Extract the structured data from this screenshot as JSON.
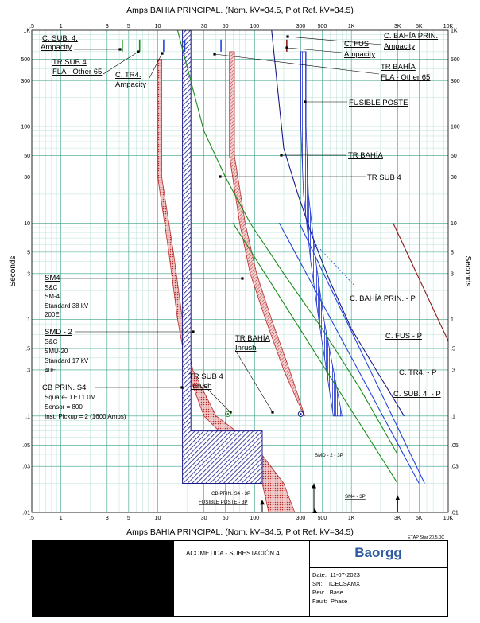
{
  "chart_data": {
    "type": "line",
    "title": "Amps   BAHÍA PRINCIPAL. (Nom. kV=34.5, Plot Ref. kV=34.5)",
    "xlabel": "Amps   BAHÍA PRINCIPAL. (Nom. kV=34.5, Plot Ref. kV=34.5)",
    "ylabel": "Seconds",
    "x_scale": "log",
    "y_scale": "log",
    "xlim": [
      0.5,
      10000
    ],
    "ylim": [
      0.01,
      1000
    ],
    "x_tick_labels": [
      {
        "v": 0.5,
        "t": ".5"
      },
      {
        "v": 1,
        "t": "1"
      },
      {
        "v": 3,
        "t": "3"
      },
      {
        "v": 5,
        "t": "5"
      },
      {
        "v": 10,
        "t": "10"
      },
      {
        "v": 30,
        "t": "30"
      },
      {
        "v": 50,
        "t": "50"
      },
      {
        "v": 100,
        "t": "100"
      },
      {
        "v": 300,
        "t": "300"
      },
      {
        "v": 500,
        "t": "500"
      },
      {
        "v": 1000,
        "t": "1K"
      },
      {
        "v": 3000,
        "t": "3K"
      },
      {
        "v": 5000,
        "t": "5K"
      },
      {
        "v": 10000,
        "t": "10K"
      }
    ],
    "y_tick_labels": [
      {
        "v": 1000,
        "t": "1K"
      },
      {
        "v": 500,
        "t": "500"
      },
      {
        "v": 300,
        "t": "300"
      },
      {
        "v": 100,
        "t": "100"
      },
      {
        "v": 50,
        "t": "50"
      },
      {
        "v": 30,
        "t": "30"
      },
      {
        "v": 10,
        "t": "10"
      },
      {
        "v": 5,
        "t": "5"
      },
      {
        "v": 3,
        "t": "3"
      },
      {
        "v": 1,
        "t": "1"
      },
      {
        "v": 0.5,
        "t": ".5"
      },
      {
        "v": 0.3,
        "t": ".3"
      },
      {
        "v": 0.1,
        "t": ".1"
      },
      {
        "v": 0.05,
        "t": ".05"
      },
      {
        "v": 0.03,
        "t": ".03"
      },
      {
        "v": 0.01,
        "t": ".01"
      }
    ],
    "grid": true,
    "series": [
      {
        "id": "tr-bahia",
        "name": "TR BAHÍA",
        "color": "#1a1a8c",
        "x": [
          150,
          200,
          280,
          400,
          600,
          1000,
          1800,
          3500
        ],
        "y": [
          1000,
          60,
          20,
          7,
          2.5,
          0.8,
          0.3,
          0.1
        ]
      },
      {
        "id": "tr-sub4",
        "name": "TR SUB 4",
        "color": "#1a8c1a",
        "x": [
          16,
          30,
          50,
          90,
          200,
          500,
          1200,
          3000
        ],
        "y": [
          1000,
          90,
          30,
          10,
          3,
          0.8,
          0.2,
          0.04
        ]
      },
      {
        "id": "c-sub4-p",
        "name": "C. SUB. 4. - P",
        "color": "#1a8c1a",
        "x": [
          60,
          3000
        ],
        "y": [
          10,
          0.02
        ]
      },
      {
        "id": "c-tr4-p",
        "name": "C. TR4. - P",
        "color": "#2244dd",
        "x": [
          180,
          5000
        ],
        "y": [
          10,
          0.02
        ]
      },
      {
        "id": "c-fus-p",
        "name": "C. FUS - P",
        "color": "#2244dd",
        "x": [
          290,
          5700
        ],
        "y": [
          10,
          0.02
        ]
      },
      {
        "id": "c-bahia-prin-p",
        "name": "C. BAHÍA PRIN. - P",
        "color": "#8c1a1a",
        "x": [
          2700,
          10000
        ],
        "y": [
          10,
          0.6
        ]
      }
    ],
    "bands": [
      {
        "id": "fusible-poste",
        "name": "FUSIBLE POSTE",
        "color": "#2233cc",
        "left": {
          "x": [
            300,
            300,
            320,
            380,
            460,
            650
          ],
          "y": [
            600,
            100,
            20,
            4,
            1,
            0.1
          ]
        },
        "right": {
          "x": [
            340,
            340,
            360,
            430,
            520,
            800
          ],
          "y": [
            600,
            100,
            20,
            4,
            1,
            0.1
          ]
        }
      },
      {
        "id": "sm4",
        "name": "SM4",
        "color": "#b83030",
        "left": {
          "x": [
            55,
            55,
            70,
            90,
            130,
            200,
            270
          ],
          "y": [
            600,
            50,
            10,
            3,
            1,
            0.3,
            0.15
          ]
        },
        "right": {
          "x": [
            62,
            62,
            80,
            105,
            150,
            230,
            330
          ],
          "y": [
            600,
            50,
            10,
            3,
            1,
            0.3,
            0.1
          ]
        }
      },
      {
        "id": "smd-2",
        "name": "SMD - 2",
        "color": "#b83030",
        "left": {
          "x": [
            10,
            10,
            13,
            16,
            20,
            30,
            60,
            120,
            140
          ],
          "y": [
            500,
            30,
            5,
            1,
            0.3,
            0.1,
            0.05,
            0.02,
            0.01
          ]
        },
        "right": {
          "x": [
            11,
            11,
            14.5,
            18,
            23,
            40,
            100,
            200,
            260
          ],
          "y": [
            500,
            30,
            5,
            1,
            0.3,
            0.1,
            0.05,
            0.02,
            0.01
          ]
        }
      }
    ],
    "cb_prin_s4": {
      "name": "CB PRIN. S4",
      "i_lo": 18,
      "i_hi": 22,
      "t_top": 1000,
      "t_knee": 0.07,
      "i_inst": 120,
      "t_bottom": 0.02
    },
    "arrows": [
      {
        "name": "SMD - 2 - 3P",
        "x": 410,
        "y_top": 0.02
      },
      {
        "name": "SM4 - 3P",
        "x": 3000,
        "y_top": 0.015
      },
      {
        "name": "CB PRIN. S4 - 3P",
        "x": 120,
        "y_top": 0.0135
      },
      {
        "name": "FUSIBLE POSTE - 3P",
        "x": 420,
        "y_top": 0.011
      }
    ],
    "inrush_points": [
      {
        "name": "TR SUB 4 Inrush",
        "x": 53,
        "y": 0.105,
        "color": "#1a8c1a"
      },
      {
        "name": "TR BAHÍA Inrush",
        "x": 300,
        "y": 0.105,
        "color": "#1a1a8c"
      }
    ],
    "ampacity_ticks": [
      {
        "x": 4.3,
        "y_top": 800,
        "y_bot": 600,
        "color": "#1a8c1a"
      },
      {
        "x": 6.5,
        "y_top": 800,
        "y_bot": 600,
        "color": "#1a8c1a"
      },
      {
        "x": 11.5,
        "y_top": 800,
        "y_bot": 600,
        "color": "#2244dd"
      },
      {
        "x": 19,
        "y_top": 800,
        "y_bot": 600,
        "color": "#2244dd"
      },
      {
        "x": 45,
        "y_top": 800,
        "y_bot": 600,
        "color": "#2244dd"
      },
      {
        "x": 215,
        "y_top": 800,
        "y_bot": 600,
        "color": "#8c1a1a"
      }
    ],
    "annotations": {
      "c_sub4": [
        "C. SUB. 4.",
        "Ampacity"
      ],
      "tr_sub4_fla": [
        "TR SUB 4",
        "FLA - Other 65"
      ],
      "c_tr4": [
        "C. TR4.",
        "Ampacity"
      ],
      "c_fus": [
        "C. FUS",
        "Ampacity"
      ],
      "c_bahia_prin": [
        "C. BAHÍA PRIN.",
        "Ampacity"
      ],
      "tr_bahia_fla": [
        "TR BAHÍA",
        "FLA - Other 65"
      ],
      "fusible_poste": "FUSIBLE POSTE",
      "tr_bahia": "TR BAHÍA",
      "tr_sub4": "TR SUB 4",
      "sm4": [
        "SM4",
        "S&C",
        "SM-4",
        "Standard  38 kV",
        "200E"
      ],
      "smd2": [
        "SMD - 2",
        "S&C",
        "SMU-20",
        "Standard  17 kV",
        "40E"
      ],
      "cb_prin": [
        "CB PRIN. S4",
        "Square-D  ET1.0M",
        "Sensor = 800",
        "Inst. Pickup = 2 (1600 Amps)"
      ],
      "tr_bahia_inrush": [
        "TR BAHÍA",
        "Inrush"
      ],
      "tr_sub4_inrush": [
        "TR SUB 4",
        "Inrush"
      ],
      "c_bahia_prin_p": "C. BAHÍA PRIN. - P",
      "c_fus_p": "C. FUS - P",
      "c_tr4_p": "C. TR4. - P",
      "c_sub4_p": "C. SUB. 4. - P"
    }
  },
  "footer": {
    "software": "ETAP Star 20.5.0C",
    "project": "ACOMETIDA - SUBESTACIÓN 4",
    "logo": "Baorgg",
    "date_label": "Date:",
    "date": "11-07-2023",
    "sn_label": "SN:",
    "sn": "ICECSAMX",
    "rev_label": "Rev:",
    "rev": "Base",
    "fault_label": "Fault:",
    "fault": "Phase"
  },
  "colors": {
    "grid_major": "#3aa088",
    "grid_minor": "#a6d8cc",
    "redaction": "#000000",
    "logo": "#2f5aa0"
  }
}
